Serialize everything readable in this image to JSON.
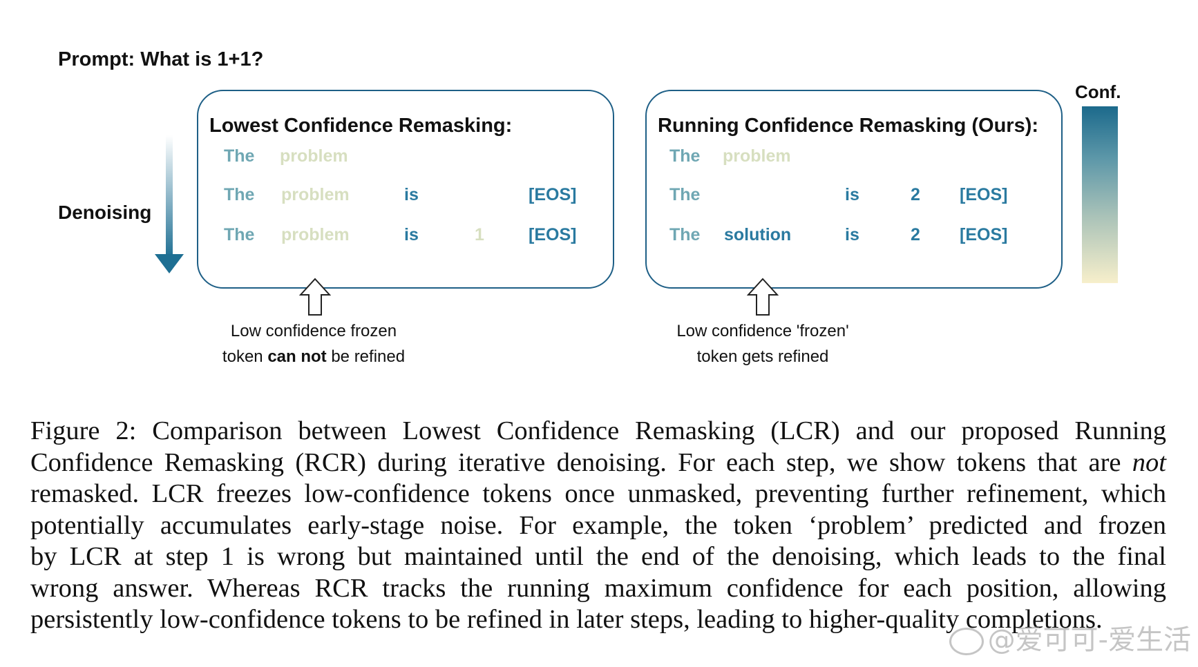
{
  "prompt": "Prompt: What is 1+1?",
  "denoising_label": "Denoising",
  "colors": {
    "panel_border": "#1e5f86",
    "conf_high": "#1c6a8c",
    "conf_mid": "#7ba8ae",
    "conf_low": "#f7efcb",
    "token_high": "#2a7aa0",
    "token_mid": "#6fa7b3",
    "token_low": "#d7dfc0",
    "token_vlow": "#e6e5c4"
  },
  "lcr": {
    "title": "Lowest Confidence Remasking:",
    "rows": [
      [
        {
          "text": "The",
          "conf": "mid"
        },
        {
          "text": "problem",
          "conf": "low"
        }
      ],
      [
        {
          "text": "The",
          "conf": "mid"
        },
        {
          "text": "problem",
          "conf": "low"
        },
        {
          "text": "is",
          "conf": "high"
        },
        {
          "text": "[EOS]",
          "conf": "high"
        }
      ],
      [
        {
          "text": "The",
          "conf": "mid"
        },
        {
          "text": "problem",
          "conf": "low"
        },
        {
          "text": "is",
          "conf": "high"
        },
        {
          "text": "1",
          "conf": "low"
        },
        {
          "text": "[EOS]",
          "conf": "high"
        }
      ]
    ],
    "note_line1": "Low confidence frozen",
    "note_line2_pre": "token ",
    "note_line2_bold": "can not",
    "note_line2_post": " be refined"
  },
  "rcr": {
    "title": "Running Confidence Remasking (Ours):",
    "rows": [
      [
        {
          "text": "The",
          "conf": "mid"
        },
        {
          "text": "problem",
          "conf": "low"
        }
      ],
      [
        {
          "text": "The",
          "conf": "mid"
        },
        {
          "text": "is",
          "conf": "high"
        },
        {
          "text": "2",
          "conf": "high"
        },
        {
          "text": "[EOS]",
          "conf": "high"
        }
      ],
      [
        {
          "text": "The",
          "conf": "mid"
        },
        {
          "text": "solution",
          "conf": "high"
        },
        {
          "text": "is",
          "conf": "high"
        },
        {
          "text": "2",
          "conf": "high"
        },
        {
          "text": "[EOS]",
          "conf": "high"
        }
      ]
    ],
    "note_line1": "Low confidence 'frozen'",
    "note_line2": "token gets refined"
  },
  "conf_label": "Conf.",
  "caption": {
    "lines": [
      "Figure 2: Comparison between Lowest Confidence Remasking (LCR) and our proposed Running",
      "Confidence Remasking (RCR) during iterative denoising. For each step, we show tokens that are not",
      "remasked. LCR freezes low-confidence tokens once unmasked, preventing further refinement, which",
      "potentially accumulates early-stage noise. For example, the token ‘problem’ predicted and frozen",
      "by LCR at step 1 is wrong but maintained until the end of the denoising, which leads to the final",
      "wrong answer. Whereas RCR tracks the running maximum confidence for each position, allowing",
      "persistently low-confidence tokens to be refined in later steps, leading to higher-quality completions."
    ],
    "italic_word": "not"
  },
  "watermark": "@爱可可-爱生活"
}
